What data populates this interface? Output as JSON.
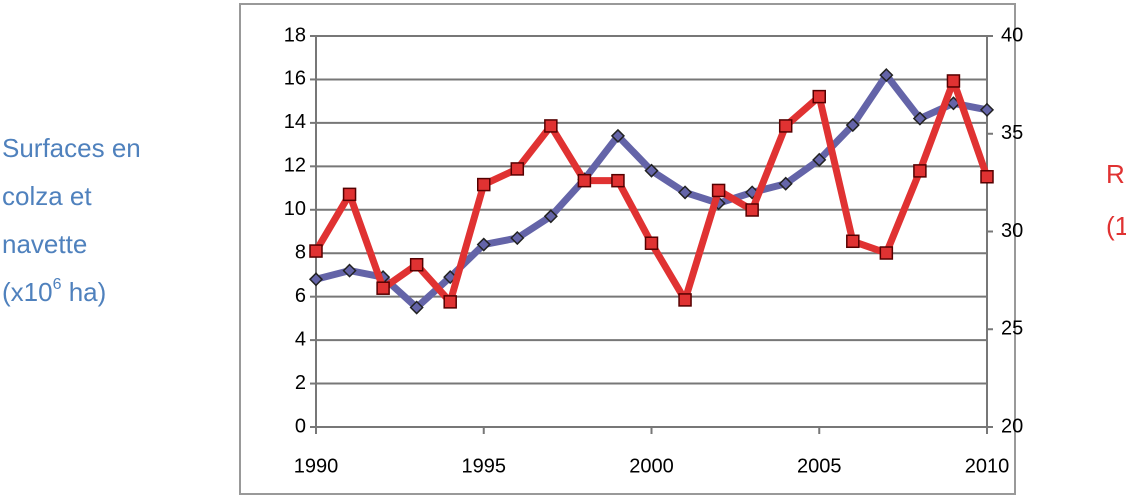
{
  "chart_data": {
    "type": "line",
    "ylabel": {
      "lines": [
        "Surfaces en",
        "colza et",
        "navette"
      ],
      "last": {
        "before": "(x10",
        "sup": "6",
        "after": " ha)"
      }
    },
    "y2label": [
      "R",
      "(1"
    ],
    "x": [
      1990,
      1991,
      1992,
      1993,
      1994,
      1995,
      1996,
      1997,
      1998,
      1999,
      2000,
      2001,
      2002,
      2003,
      2004,
      2005,
      2006,
      2007,
      2008,
      2009,
      2010
    ],
    "xlim": [
      1990,
      2010
    ],
    "xticks": [
      1990,
      1995,
      2000,
      2005,
      2010
    ],
    "ylim": [
      0,
      18
    ],
    "yticks": [
      0,
      2,
      4,
      6,
      8,
      10,
      12,
      14,
      16,
      18
    ],
    "y2lim": [
      20,
      40
    ],
    "y2ticks": [
      20,
      25,
      30,
      35,
      40
    ],
    "grid": true,
    "series": [
      {
        "color": "#6464a8",
        "values": [
          6.8,
          7.2,
          6.9,
          5.5,
          6.9,
          8.4,
          8.7,
          9.7,
          11.4,
          13.4,
          11.8,
          10.8,
          10.3,
          10.8,
          11.2,
          12.3,
          13.9,
          16.2,
          14.2,
          14.9,
          14.6
        ]
      },
      {
        "color": "#e03232",
        "axis": "y2",
        "values": [
          29.0,
          31.9,
          27.1,
          28.3,
          26.4,
          32.4,
          33.2,
          35.4,
          32.6,
          32.6,
          29.4,
          26.5,
          32.1,
          31.1,
          35.4,
          36.9,
          29.5,
          28.9,
          33.1,
          37.7,
          32.8
        ]
      }
    ]
  }
}
